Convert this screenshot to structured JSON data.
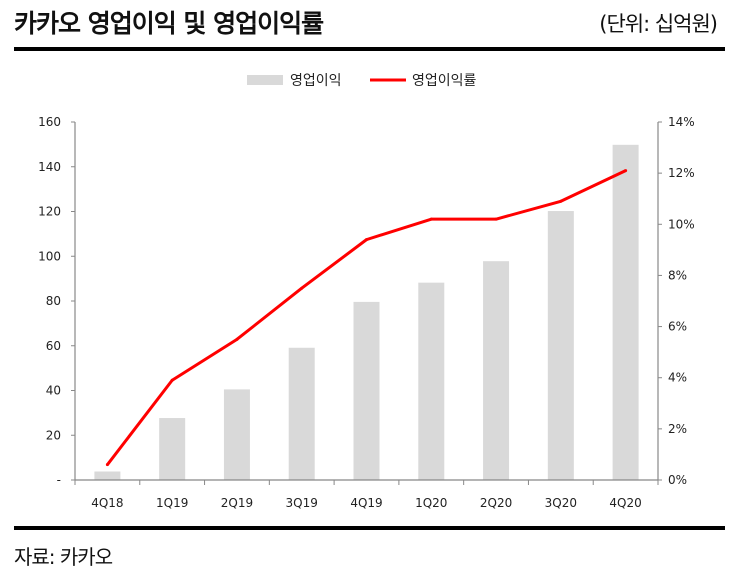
{
  "header": {
    "title": "카카오 영업이익 및 영업이익률",
    "unit": "(단위: 십억원)"
  },
  "footer": {
    "source": "자료: 카카오"
  },
  "chart_data": {
    "type": "bar+line",
    "categories": [
      "4Q18",
      "1Q19",
      "2Q19",
      "3Q19",
      "4Q19",
      "1Q20",
      "2Q20",
      "3Q20",
      "4Q20"
    ],
    "series": [
      {
        "name": "영업이익",
        "type": "bar",
        "axis": "left",
        "color": "#d9d9d9",
        "values": [
          3.8,
          27.7,
          40.5,
          59.1,
          79.6,
          88.2,
          97.8,
          120.2,
          149.8
        ]
      },
      {
        "name": "영업이익률",
        "type": "line",
        "axis": "right",
        "color": "#ff0000",
        "values": [
          0.6,
          3.9,
          5.5,
          7.5,
          9.4,
          10.2,
          10.2,
          10.9,
          12.1
        ]
      }
    ],
    "left_axis": {
      "ylim": [
        0,
        160
      ],
      "ticks": [
        "-",
        "20",
        "40",
        "60",
        "80",
        "100",
        "120",
        "140",
        "160"
      ]
    },
    "right_axis": {
      "ylim": [
        0,
        14
      ],
      "ticks": [
        "0%",
        "2%",
        "4%",
        "6%",
        "8%",
        "10%",
        "12%",
        "14%"
      ]
    },
    "legend_position": "top-center",
    "grid": false
  }
}
